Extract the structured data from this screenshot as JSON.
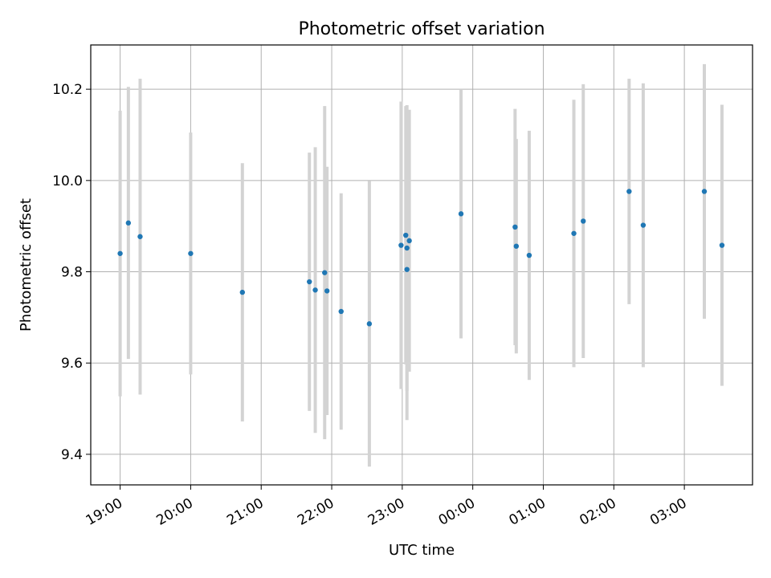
{
  "chart_data": {
    "type": "scatter",
    "title": "Photometric offset variation",
    "xlabel": "UTC time",
    "ylabel": "Photometric offset",
    "x_ticks": [
      "19:00",
      "20:00",
      "21:00",
      "22:00",
      "23:00",
      "00:00",
      "01:00",
      "02:00",
      "03:00"
    ],
    "y_ticks": [
      "9.4",
      "9.6",
      "9.8",
      "10.0",
      "10.2"
    ],
    "xlim": [
      "18:35",
      "03:58"
    ],
    "ylim": [
      9.333,
      10.297
    ],
    "grid": true,
    "colors": {
      "points": "#1f77b4",
      "errorbars": "#d3d3d3",
      "grid": "#b0b0b0"
    },
    "points": [
      {
        "t": "19:00",
        "y": 9.84,
        "err": 0.313
      },
      {
        "t": "19:07",
        "y": 9.907,
        "err": 0.298
      },
      {
        "t": "19:17",
        "y": 9.877,
        "err": 0.346
      },
      {
        "t": "20:00",
        "y": 9.84,
        "err": 0.265
      },
      {
        "t": "20:44",
        "y": 9.755,
        "err": 0.283
      },
      {
        "t": "21:41",
        "y": 9.778,
        "err": 0.283
      },
      {
        "t": "21:46",
        "y": 9.76,
        "err": 0.313
      },
      {
        "t": "21:54",
        "y": 9.798,
        "err": 0.365
      },
      {
        "t": "21:56",
        "y": 9.758,
        "err": 0.272
      },
      {
        "t": "22:08",
        "y": 9.713,
        "err": 0.259
      },
      {
        "t": "22:32",
        "y": 9.686,
        "err": 0.313
      },
      {
        "t": "22:59",
        "y": 9.858,
        "err": 0.315
      },
      {
        "t": "23:03",
        "y": 9.88,
        "err": 0.283
      },
      {
        "t": "23:04",
        "y": 9.852,
        "err": 0.313
      },
      {
        "t": "23:04",
        "y": 9.805,
        "err": 0.33
      },
      {
        "t": "23:06",
        "y": 9.868,
        "err": 0.287
      },
      {
        "t": "23:50",
        "y": 9.927,
        "err": 0.273
      },
      {
        "t": "00:36",
        "y": 9.898,
        "err": 0.259
      },
      {
        "t": "00:37",
        "y": 9.856,
        "err": 0.235
      },
      {
        "t": "00:48",
        "y": 9.836,
        "err": 0.273
      },
      {
        "t": "01:26",
        "y": 9.884,
        "err": 0.293
      },
      {
        "t": "01:34",
        "y": 9.911,
        "err": 0.3
      },
      {
        "t": "02:13",
        "y": 9.976,
        "err": 0.247
      },
      {
        "t": "02:25",
        "y": 9.902,
        "err": 0.311
      },
      {
        "t": "03:17",
        "y": 9.976,
        "err": 0.279
      },
      {
        "t": "03:32",
        "y": 9.858,
        "err": 0.308
      }
    ]
  }
}
